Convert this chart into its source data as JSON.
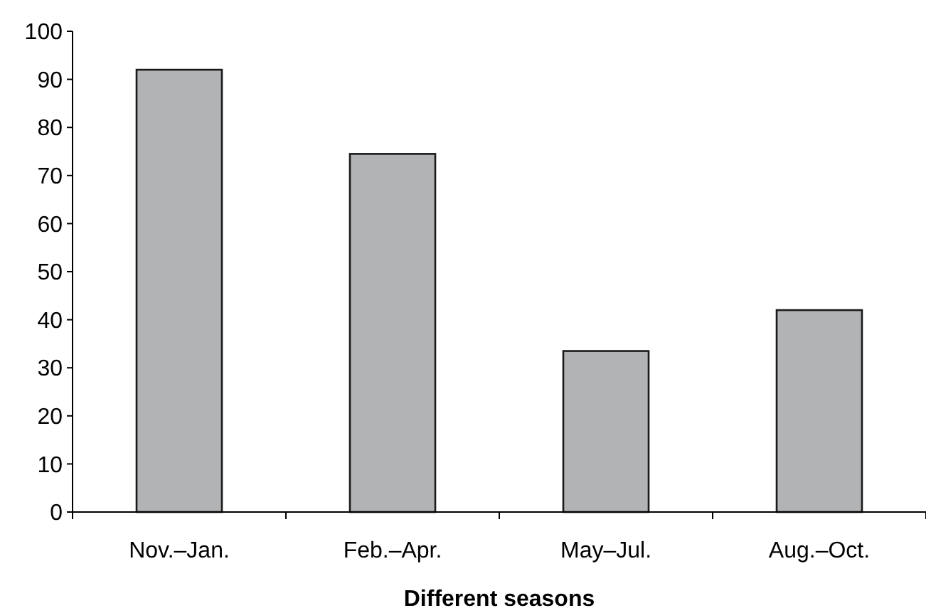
{
  "chart_data": {
    "type": "bar",
    "xlabel": "Different seasons",
    "categories": [
      "Nov.–Jan.",
      "Feb.–Apr.",
      "May–Jul.",
      "Aug.–Oct."
    ],
    "values": [
      92,
      74.5,
      33.5,
      42
    ],
    "color": "#b2b3b5",
    "ylim": [
      0,
      100
    ],
    "yticks": [
      0,
      10,
      20,
      30,
      40,
      50,
      60,
      70,
      80,
      90,
      100
    ],
    "grid": false
  }
}
